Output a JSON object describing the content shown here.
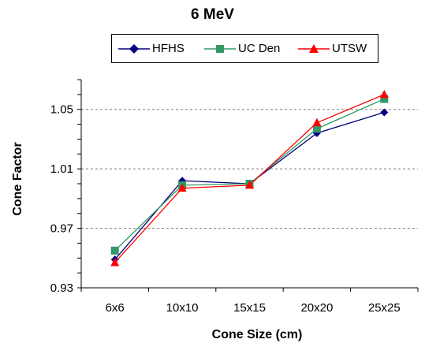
{
  "chart_data": {
    "type": "line",
    "title": "6 MeV",
    "xlabel": "Cone Size (cm)",
    "ylabel": "Cone Factor",
    "categories": [
      "6x6",
      "10x10",
      "15x15",
      "20x20",
      "25x25"
    ],
    "ylim": [
      0.93,
      1.07
    ],
    "yticks": [
      "0.93",
      "0.97",
      "1.01",
      "1.05"
    ],
    "grid": "horizontal dashed at labeled ticks",
    "legend_placement": "top-center",
    "series": [
      {
        "name": "HFHS",
        "values": [
          0.949,
          1.002,
          1.0,
          1.034,
          1.048
        ],
        "color": "#00007F",
        "marker": "diamond"
      },
      {
        "name": "UC Den",
        "values": [
          0.955,
          0.999,
          1.0,
          1.037,
          1.057
        ],
        "color": "#339966",
        "marker": "square"
      },
      {
        "name": "UTSW",
        "values": [
          0.947,
          0.997,
          0.999,
          1.041,
          1.06
        ],
        "color": "#FF0000",
        "marker": "triangle"
      }
    ]
  }
}
